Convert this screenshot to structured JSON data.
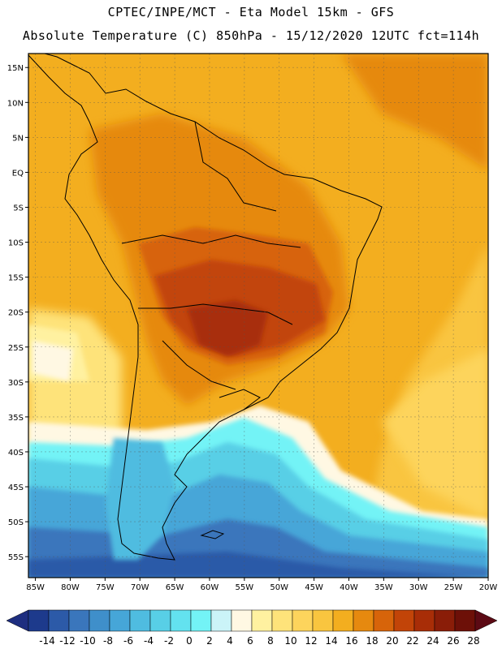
{
  "header": {
    "line1": "CPTEC/INPE/MCT -  Eta Model 15km - GFS",
    "line2": "Absolute Temperature (C) 850hPa - 15/12/2020 12UTC fct=114h"
  },
  "map": {
    "lat_range": [
      17,
      -58
    ],
    "lon_range": [
      -86,
      -20
    ],
    "lat_ticks": [
      "15N",
      "10N",
      "5N",
      "EQ",
      "5S",
      "10S",
      "15S",
      "20S",
      "25S",
      "30S",
      "35S",
      "40S",
      "45S",
      "50S",
      "55S"
    ],
    "lon_ticks": [
      "85W",
      "80W",
      "75W",
      "70W",
      "65W",
      "60W",
      "55W",
      "50W",
      "45W",
      "40W",
      "35W",
      "30W",
      "25W",
      "20W"
    ]
  },
  "colorbar": {
    "labels": [
      "-14",
      "-12",
      "-10",
      "-8",
      "-6",
      "-4",
      "-2",
      "0",
      "2",
      "4",
      "6",
      "8",
      "10",
      "12",
      "14",
      "16",
      "18",
      "20",
      "22",
      "24",
      "26",
      "28"
    ],
    "colors": [
      "#1d3a8c",
      "#2c5aa8",
      "#3a76bc",
      "#3f8fca",
      "#46a6d8",
      "#4fbce0",
      "#58cfe6",
      "#63e2ef",
      "#73f3f6",
      "#cbf4f8",
      "#fff8e3",
      "#fff1a0",
      "#fee37a",
      "#fdd45c",
      "#f9c53f",
      "#f3ae1f",
      "#e6890f",
      "#d7640a",
      "#c24408",
      "#a82d07",
      "#8a1d08",
      "#6d1008"
    ],
    "min_color": "#1e2e80",
    "max_color": "#5c0a14"
  }
}
